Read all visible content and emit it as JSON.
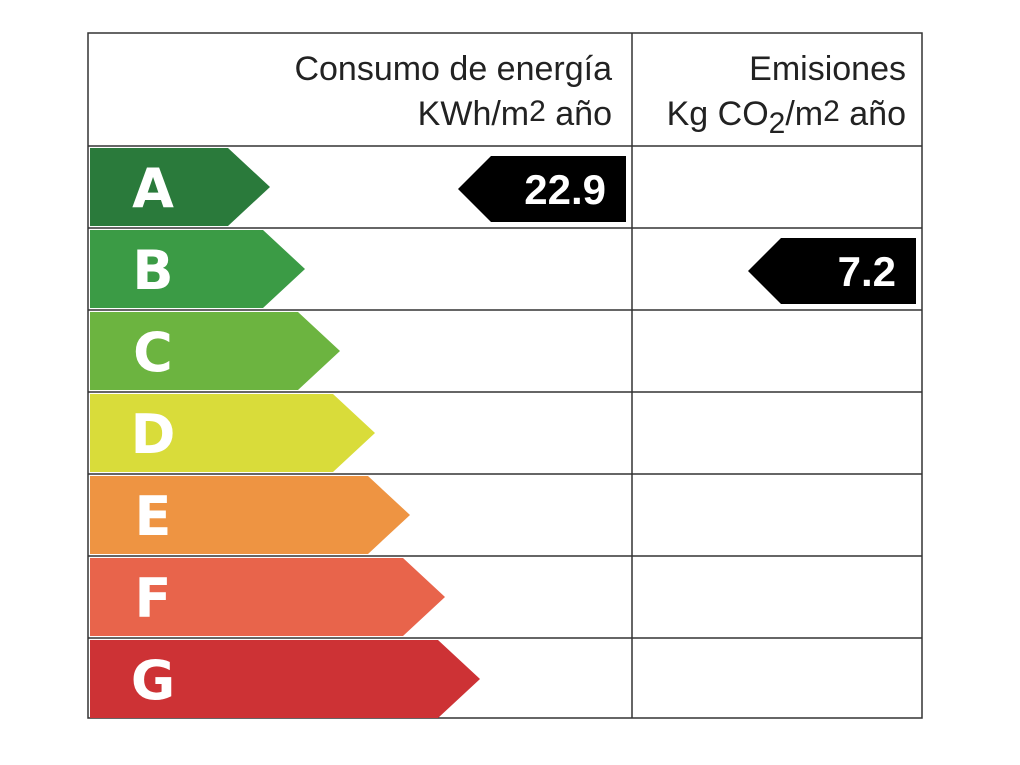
{
  "header": {
    "energy_title": "Consumo de energía",
    "energy_unit": [
      "KWh/m",
      "2",
      " año"
    ],
    "emissions_title": "Emisiones",
    "emissions_unit": [
      "Kg CO",
      "2",
      "/m",
      "2",
      " año"
    ]
  },
  "ratings": [
    {
      "letter": "A",
      "color": "#2a7a3b"
    },
    {
      "letter": "B",
      "color": "#3b9b45"
    },
    {
      "letter": "C",
      "color": "#6cb440"
    },
    {
      "letter": "D",
      "color": "#d9dc3a"
    },
    {
      "letter": "E",
      "color": "#ee9442"
    },
    {
      "letter": "F",
      "color": "#e8644b"
    },
    {
      "letter": "G",
      "color": "#cd3235"
    }
  ],
  "energy": {
    "rating": "A",
    "value": 22.9
  },
  "emissions": {
    "rating": "B",
    "value": 7.2
  }
}
